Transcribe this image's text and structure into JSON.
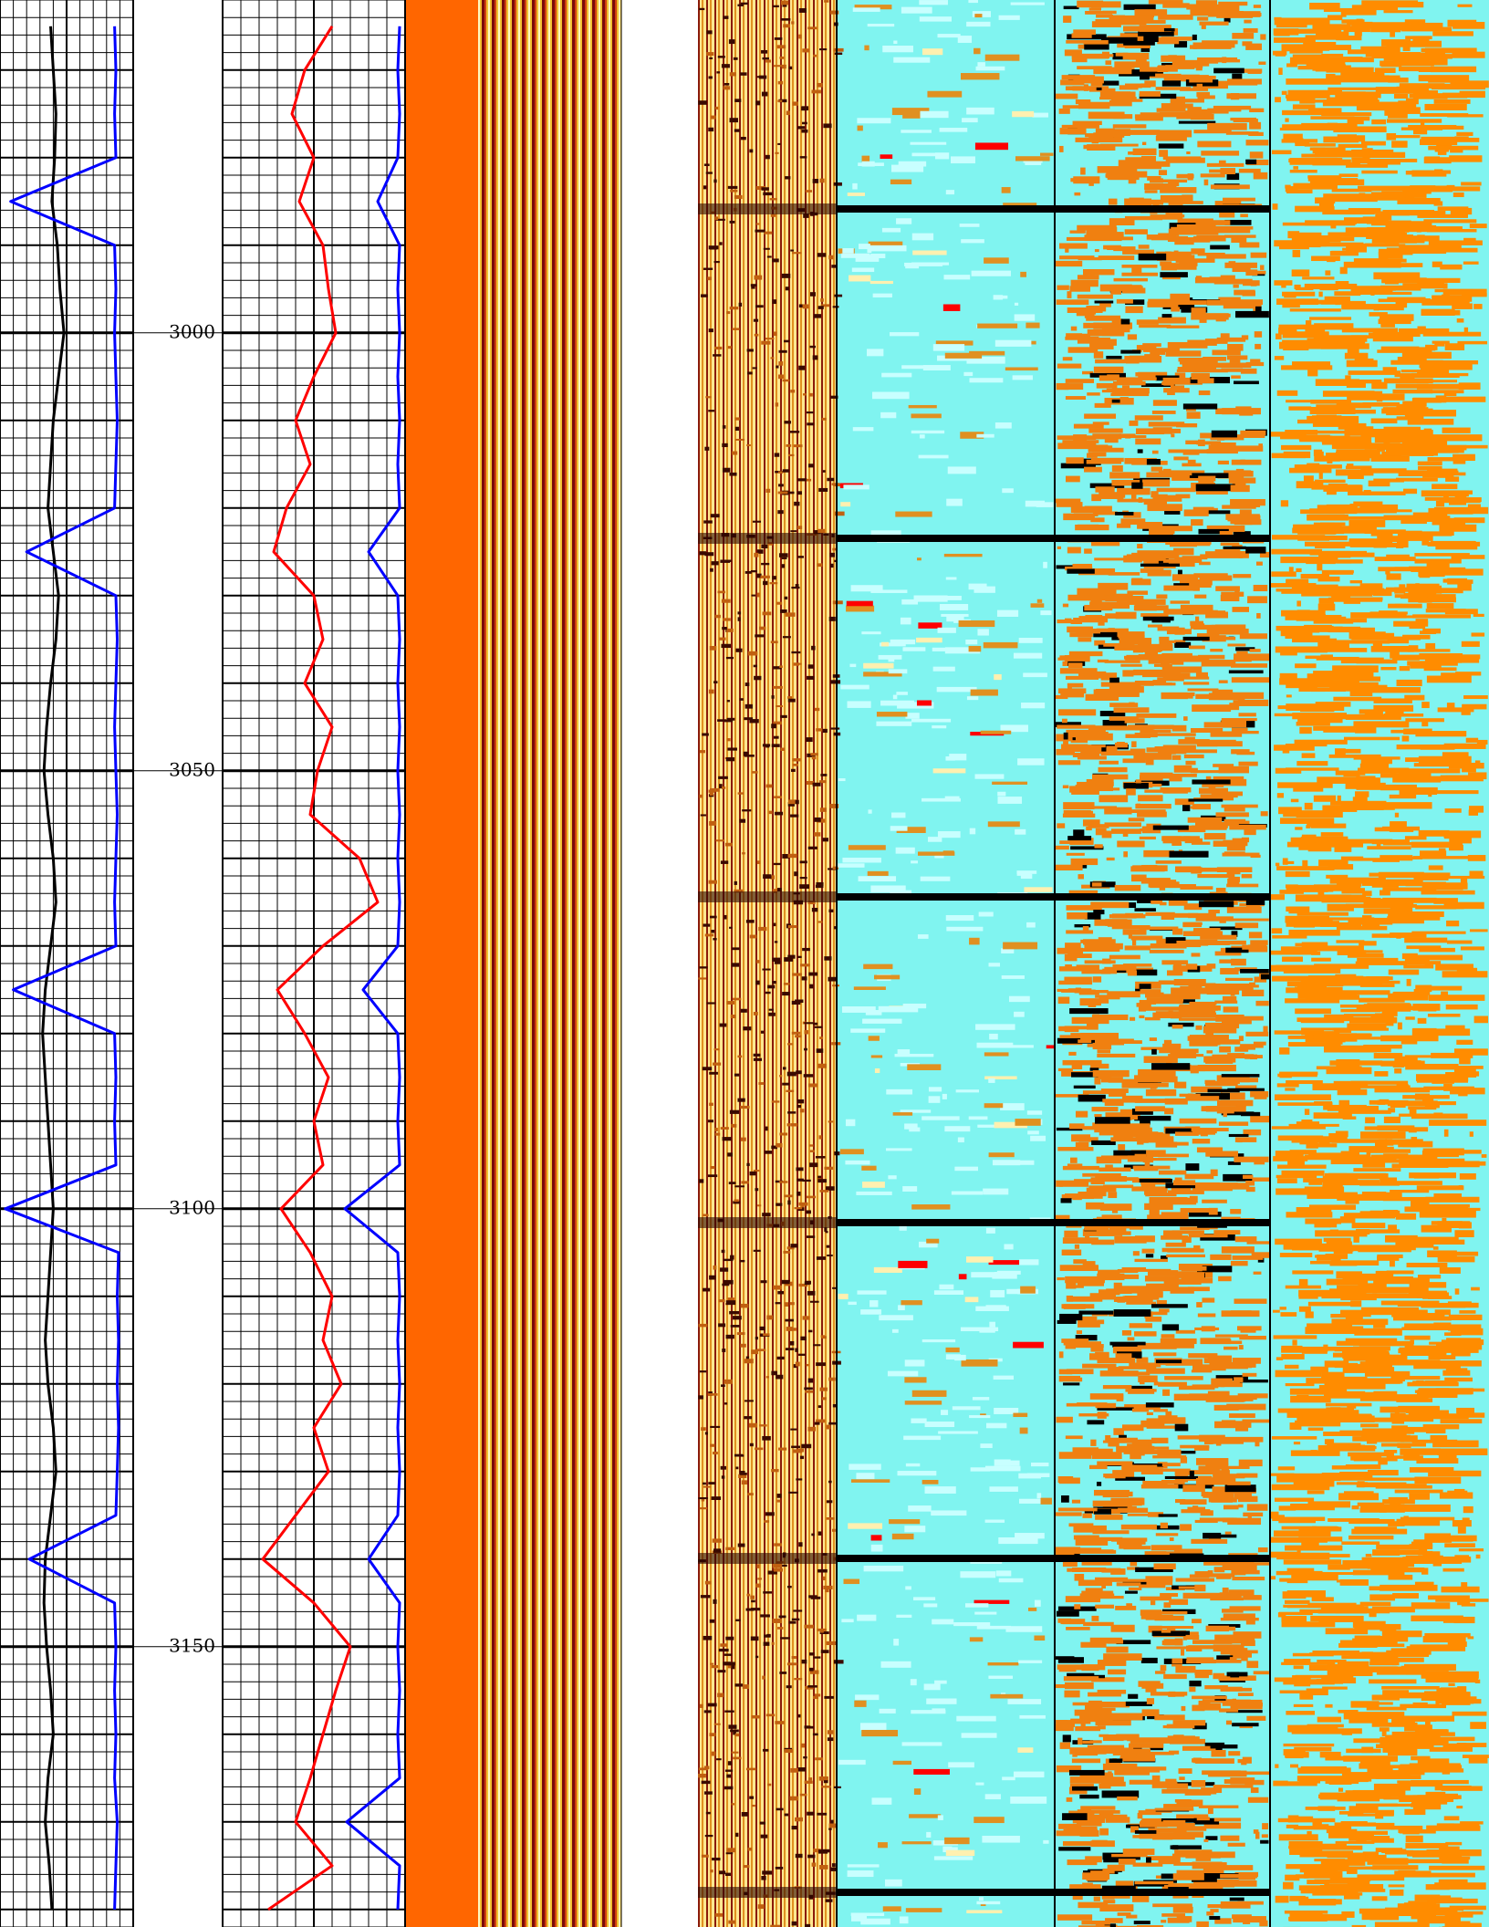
{
  "chart_data": {
    "type": "well-log",
    "ylim": [
      2962,
      3182
    ],
    "yticks": [
      3000,
      3050,
      3100,
      3150
    ],
    "x": [
      2965,
      2970,
      2975,
      2980,
      2985,
      2990,
      2995,
      3000,
      3005,
      3010,
      3015,
      3020,
      3025,
      3030,
      3035,
      3040,
      3045,
      3050,
      3055,
      3060,
      3065,
      3070,
      3075,
      3080,
      3085,
      3090,
      3095,
      3100,
      3105,
      3110,
      3115,
      3120,
      3125,
      3130,
      3135,
      3140,
      3145,
      3150,
      3155,
      3160,
      3165,
      3170,
      3175,
      3180
    ],
    "tracks": [
      {
        "xlim": [
          0,
          100
        ],
        "series": [
          {
            "color": "#000000",
            "values": [
              38,
              40,
              42,
              41,
              39,
              43,
              45,
              48,
              44,
              40,
              38,
              36,
              40,
              44,
              42,
              38,
              35,
              33,
              36,
              40,
              42,
              38,
              34,
              32,
              34,
              36,
              38,
              40,
              38,
              36,
              34,
              36,
              40,
              42,
              38,
              34,
              33,
              35,
              38,
              40,
              36,
              34,
              37,
              39
            ]
          },
          {
            "color": "#0000ff",
            "values": [
              86,
              87,
              86,
              87,
              8,
              86,
              87,
              86,
              87,
              88,
              87,
              86,
              20,
              87,
              88,
              87,
              86,
              87,
              88,
              87,
              86,
              87,
              10,
              86,
              87,
              86,
              87,
              4,
              89,
              88,
              89,
              88,
              89,
              88,
              87,
              22,
              86,
              87,
              86,
              87,
              86,
              88,
              87,
              86
            ]
          }
        ]
      },
      {
        "xlim": [
          0,
          100
        ],
        "series": [
          {
            "color": "#ff0000",
            "values": [
              60,
              45,
              38,
              50,
              42,
              55,
              58,
              62,
              50,
              40,
              48,
              35,
              28,
              50,
              55,
              45,
              60,
              52,
              48,
              75,
              85,
              55,
              30,
              45,
              58,
              50,
              55,
              32,
              48,
              60,
              55,
              65,
              50,
              58,
              40,
              22,
              50,
              70,
              62,
              55,
              48,
              40,
              60,
              25
            ]
          },
          {
            "color": "#0000ff",
            "values": [
              97,
              96,
              97,
              96,
              85,
              97,
              96,
              97,
              96,
              97,
              96,
              97,
              80,
              96,
              97,
              96,
              97,
              96,
              97,
              96,
              97,
              96,
              77,
              96,
              97,
              96,
              97,
              67,
              96,
              97,
              96,
              97,
              96,
              97,
              96,
              80,
              97,
              96,
              97,
              96,
              97,
              68,
              97,
              96
            ]
          }
        ]
      }
    ]
  }
}
